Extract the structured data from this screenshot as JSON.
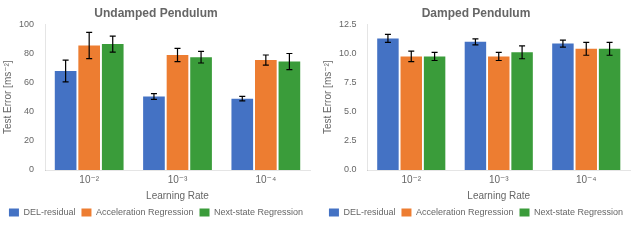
{
  "chart_data": [
    {
      "type": "bar",
      "title": "Undamped Pendulum",
      "xlabel": "Learning Rate",
      "ylabel": "Test Error [ms⁻²]",
      "categories": [
        "10⁻²",
        "10⁻³",
        "10⁻⁴"
      ],
      "series": [
        {
          "name": "DEL-residual",
          "color": "#4472C4",
          "values": [
            68.0,
            50.5,
            49.0
          ],
          "errors": [
            7.5,
            2.0,
            1.5
          ]
        },
        {
          "name": "Acceleration Regression",
          "color": "#ED7D31",
          "values": [
            85.5,
            79.0,
            75.5
          ],
          "errors": [
            9.0,
            4.5,
            3.5
          ]
        },
        {
          "name": "Next-state Regression",
          "color": "#3A9C3A",
          "values": [
            86.5,
            77.5,
            74.5
          ],
          "errors": [
            5.5,
            4.0,
            5.5
          ]
        }
      ],
      "ylim": [
        0,
        100
      ],
      "yticks": [
        0,
        20,
        40,
        60,
        80,
        100
      ],
      "grid": false,
      "legend": "bottom"
    },
    {
      "type": "bar",
      "title": "Damped Pendulum",
      "xlabel": "Learning Rate",
      "ylabel": "Test Error [ms⁻²]",
      "categories": [
        "10⁻²",
        "10⁻³",
        "10⁻⁴"
      ],
      "series": [
        {
          "name": "DEL-residual",
          "color": "#4472C4",
          "values": [
            11.3,
            11.0,
            10.85
          ],
          "errors": [
            0.35,
            0.25,
            0.3
          ]
        },
        {
          "name": "Acceleration Regression",
          "color": "#ED7D31",
          "values": [
            9.75,
            9.75,
            10.4
          ],
          "errors": [
            0.45,
            0.35,
            0.55
          ]
        },
        {
          "name": "Next-state Regression",
          "color": "#3A9C3A",
          "values": [
            9.75,
            10.1,
            10.4
          ],
          "errors": [
            0.35,
            0.55,
            0.55
          ]
        }
      ],
      "ylim": [
        0,
        12.5
      ],
      "yticks": [
        {
          "value": 0,
          "label": "0.0"
        },
        2.5,
        {
          "value": 5,
          "label": "5.0"
        },
        7.5,
        {
          "value": 10,
          "label": "10.0"
        },
        12.5
      ],
      "grid": false,
      "legend": "bottom"
    }
  ]
}
